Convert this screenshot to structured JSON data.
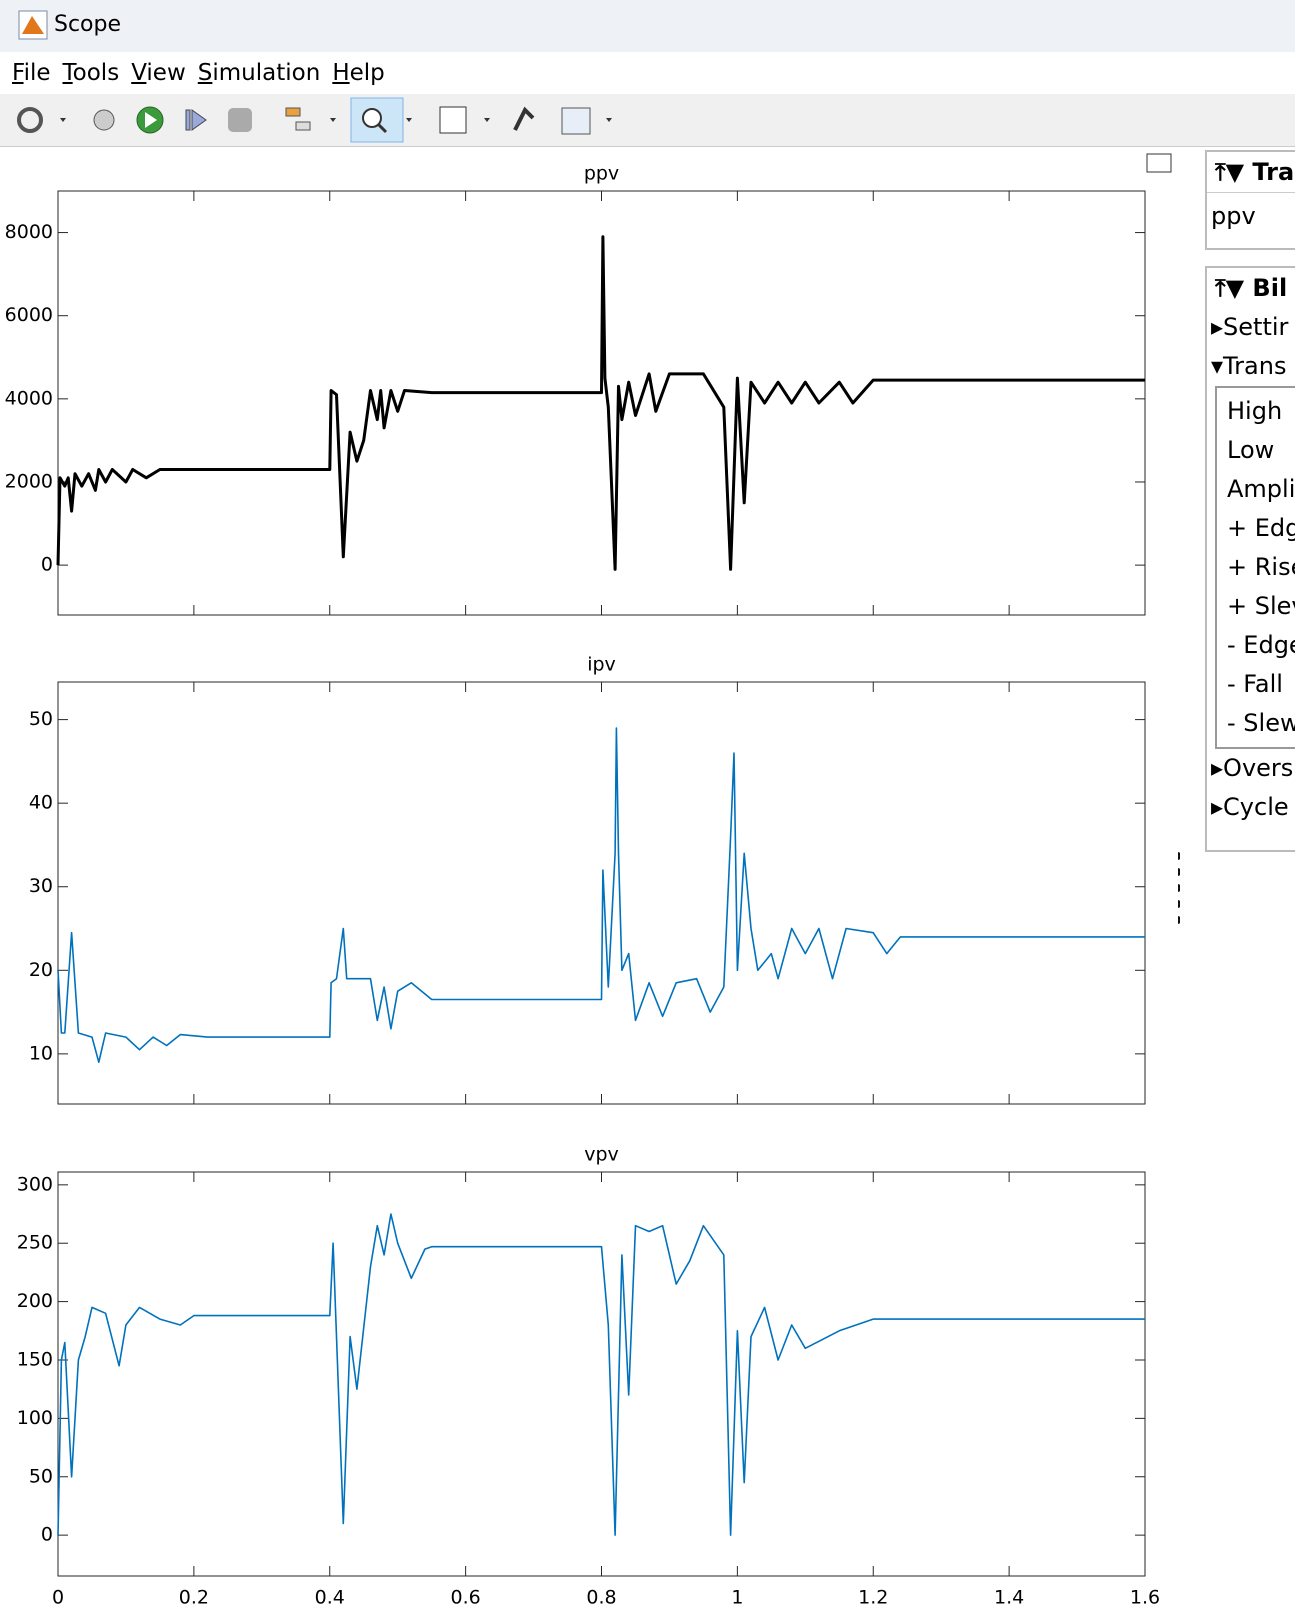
{
  "window": {
    "title": "Scope"
  },
  "menu": [
    "File",
    "Tools",
    "View",
    "Simulation",
    "Help"
  ],
  "side_panel": {
    "trace": {
      "title": "Tra",
      "signal": "ppv"
    },
    "bilevel": {
      "title": "Bil",
      "sections": [
        "Settir",
        "Trans",
        "Overs",
        "Cycle"
      ],
      "trans_items": [
        "High",
        "Low",
        "Amplit",
        "+ Edg",
        "+ Rise",
        "+ Slev",
        "- Edge",
        "- Fall",
        "- Slew"
      ]
    }
  },
  "chart_data": [
    {
      "type": "line",
      "title": "ppv",
      "color": "#000000",
      "xlim": [
        0,
        1.6
      ],
      "ylim": [
        -1200,
        9000
      ],
      "yticks": [
        0,
        2000,
        4000,
        6000,
        8000
      ],
      "x": [
        0,
        0.003,
        0.01,
        0.015,
        0.02,
        0.025,
        0.035,
        0.045,
        0.055,
        0.06,
        0.07,
        0.08,
        0.1,
        0.11,
        0.13,
        0.15,
        0.2,
        0.4,
        0.402,
        0.41,
        0.42,
        0.43,
        0.44,
        0.45,
        0.46,
        0.47,
        0.475,
        0.48,
        0.49,
        0.5,
        0.51,
        0.55,
        0.8,
        0.802,
        0.805,
        0.81,
        0.82,
        0.825,
        0.83,
        0.84,
        0.85,
        0.87,
        0.88,
        0.9,
        0.95,
        0.98,
        0.99,
        1.0,
        1.01,
        1.02,
        1.04,
        1.06,
        1.08,
        1.1,
        1.12,
        1.15,
        1.17,
        1.2,
        1.23,
        1.6
      ],
      "values": [
        0,
        2100,
        1900,
        2100,
        1300,
        2200,
        1900,
        2200,
        1800,
        2300,
        2000,
        2300,
        2000,
        2300,
        2100,
        2300,
        2300,
        2300,
        4200,
        4100,
        200,
        3200,
        2500,
        3000,
        4200,
        3500,
        4200,
        3300,
        4200,
        3700,
        4200,
        4150,
        4150,
        7900,
        4500,
        3800,
        -100,
        4300,
        3500,
        4400,
        3600,
        4600,
        3700,
        4600,
        4600,
        3800,
        -100,
        4500,
        1500,
        4400,
        3900,
        4400,
        3900,
        4400,
        3900,
        4400,
        3900,
        4450,
        4450,
        4450
      ]
    },
    {
      "type": "line",
      "title": "ipv",
      "color": "#0072bd",
      "xlim": [
        0,
        1.6
      ],
      "ylim": [
        4,
        54.5
      ],
      "yticks": [
        10,
        20,
        30,
        40,
        50
      ],
      "x": [
        0,
        0.005,
        0.01,
        0.02,
        0.03,
        0.05,
        0.06,
        0.07,
        0.1,
        0.12,
        0.14,
        0.16,
        0.18,
        0.22,
        0.4,
        0.402,
        0.41,
        0.42,
        0.425,
        0.46,
        0.47,
        0.48,
        0.49,
        0.5,
        0.52,
        0.55,
        0.8,
        0.802,
        0.81,
        0.82,
        0.822,
        0.825,
        0.83,
        0.84,
        0.85,
        0.87,
        0.89,
        0.91,
        0.94,
        0.96,
        0.98,
        0.99,
        0.995,
        1.0,
        1.01,
        1.02,
        1.03,
        1.05,
        1.06,
        1.08,
        1.1,
        1.12,
        1.14,
        1.16,
        1.2,
        1.22,
        1.24,
        1.6
      ],
      "values": [
        20,
        12.5,
        12.5,
        24.5,
        12.5,
        12,
        9,
        12.5,
        12,
        10.5,
        12,
        11,
        12.3,
        12,
        12,
        18.5,
        19,
        25,
        19,
        19,
        14,
        18,
        13,
        17.5,
        18.5,
        16.5,
        16.5,
        32,
        18,
        34,
        49,
        34,
        20,
        22,
        14,
        18.5,
        14.5,
        18.5,
        19,
        15,
        18,
        36,
        46,
        20,
        34,
        25,
        20,
        22,
        19,
        25,
        22,
        25,
        19,
        25,
        24.5,
        22,
        24,
        24
      ]
    },
    {
      "type": "line",
      "title": "vpv",
      "color": "#0072bd",
      "xlim": [
        0,
        1.6
      ],
      "ylim": [
        -35,
        311
      ],
      "yticks": [
        0,
        50,
        100,
        150,
        200,
        250,
        300
      ],
      "xticks": [
        0,
        0.2,
        0.4,
        0.6,
        0.8,
        1,
        1.2,
        1.4,
        1.6
      ],
      "x": [
        0,
        0.005,
        0.01,
        0.02,
        0.03,
        0.04,
        0.05,
        0.07,
        0.09,
        0.1,
        0.12,
        0.15,
        0.18,
        0.2,
        0.4,
        0.405,
        0.42,
        0.43,
        0.44,
        0.46,
        0.47,
        0.48,
        0.49,
        0.5,
        0.52,
        0.54,
        0.55,
        0.8,
        0.81,
        0.82,
        0.83,
        0.84,
        0.85,
        0.87,
        0.89,
        0.91,
        0.93,
        0.95,
        0.98,
        0.99,
        1.0,
        1.01,
        1.02,
        1.04,
        1.06,
        1.08,
        1.1,
        1.15,
        1.2,
        1.25,
        1.6
      ],
      "values": [
        0,
        150,
        165,
        50,
        150,
        170,
        195,
        190,
        145,
        180,
        195,
        185,
        180,
        188,
        188,
        250,
        10,
        170,
        125,
        230,
        265,
        240,
        275,
        250,
        220,
        245,
        247,
        247,
        180,
        0,
        240,
        120,
        265,
        260,
        265,
        215,
        235,
        265,
        240,
        0,
        175,
        45,
        170,
        195,
        150,
        180,
        160,
        175,
        185,
        185,
        185
      ]
    }
  ]
}
